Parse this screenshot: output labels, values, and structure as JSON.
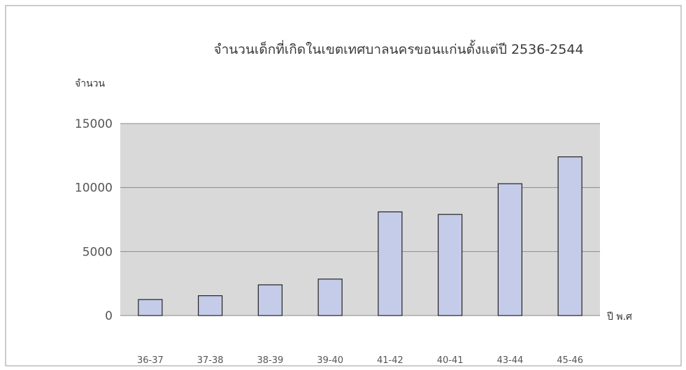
{
  "chart_data": {
    "type": "bar",
    "title": "จำนวนเด็กที่เกิดในเขตเทศบาลนครขอนแก่นตั้งแต่ปี 2536-2544",
    "ylabel": "จำนวน",
    "xlabel": "ปี พ.ศ",
    "categories": [
      "36-37",
      "37-38",
      "38-39",
      "39-40",
      "41-42",
      "40-41",
      "43-44",
      "45-46"
    ],
    "values": [
      1250,
      1550,
      2400,
      2850,
      8100,
      7900,
      10300,
      12400
    ],
    "ylim": [
      0,
      15000
    ],
    "yticks": [
      "0",
      "5000",
      "10000",
      "15000"
    ],
    "grid": true,
    "colors": {
      "plot_bg": "#d9d9d9",
      "gridline": "#8a8a8a",
      "bar_fill": "#c5cce9",
      "bar_stroke": "#222222",
      "frame": "#9a9a9a"
    }
  }
}
